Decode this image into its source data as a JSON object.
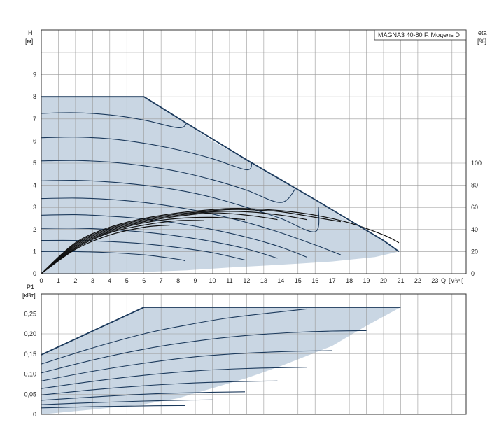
{
  "chart_data": [
    {
      "type": "line",
      "id": "head",
      "title": "MAGNA3 40-80 F. Модель D",
      "ylabel": "H",
      "yunit": "[м]",
      "xlabel": "Q",
      "xunit": "[м³/ч]",
      "y2label": "eta",
      "y2unit": "[%]",
      "xlim": [
        0,
        25
      ],
      "ylim": [
        0,
        11
      ],
      "y2lim": [
        0,
        220
      ],
      "xticks": [
        "0",
        "1",
        "2",
        "3",
        "4",
        "5",
        "6",
        "7",
        "8",
        "9",
        "10",
        "11",
        "12",
        "13",
        "14",
        "15",
        "16",
        "17",
        "18",
        "19",
        "20",
        "21",
        "22",
        "23"
      ],
      "yticks": [
        "0",
        "1",
        "2",
        "3",
        "4",
        "5",
        "6",
        "7",
        "8",
        "9"
      ],
      "y2ticks": [
        "0",
        "20",
        "40",
        "60",
        "80",
        "100"
      ],
      "grid": true,
      "shaded_region": [
        [
          0,
          0
        ],
        [
          0,
          8
        ],
        [
          6,
          8
        ],
        [
          8.5,
          6.8
        ],
        [
          10,
          6.0
        ],
        [
          12,
          5.15
        ],
        [
          14,
          4.3
        ],
        [
          16,
          3.35
        ],
        [
          18,
          2.35
        ],
        [
          20,
          1.5
        ],
        [
          20.9,
          1.0
        ],
        [
          19.5,
          0.75
        ],
        [
          17,
          0.55
        ],
        [
          15,
          0.45
        ],
        [
          13,
          0.36
        ],
        [
          11,
          0.28
        ],
        [
          8.5,
          0.15
        ],
        [
          6,
          0.08
        ],
        [
          3,
          0.02
        ]
      ],
      "envelope": [
        [
          0,
          8
        ],
        [
          6,
          8
        ],
        [
          8.5,
          6.8
        ],
        [
          12,
          5.15
        ],
        [
          16,
          3.35
        ],
        [
          20,
          1.5
        ],
        [
          20.9,
          1.0
        ]
      ],
      "series": [
        {
          "values": [
            [
              0,
              7.25
            ],
            [
              2,
              7.28
            ],
            [
              4,
              7.18
            ],
            [
              6,
              6.95
            ],
            [
              8,
              6.6
            ],
            [
              8.5,
              6.8
            ]
          ]
        },
        {
          "values": [
            [
              0,
              6.15
            ],
            [
              2,
              6.18
            ],
            [
              4,
              6.1
            ],
            [
              6,
              5.9
            ],
            [
              8,
              5.6
            ],
            [
              10,
              5.2
            ],
            [
              12,
              4.7
            ],
            [
              12.3,
              5.05
            ]
          ]
        },
        {
          "values": [
            [
              0,
              5.1
            ],
            [
              2,
              5.12
            ],
            [
              4,
              5.05
            ],
            [
              6,
              4.88
            ],
            [
              8,
              4.62
            ],
            [
              10,
              4.25
            ],
            [
              12,
              3.78
            ],
            [
              14,
              3.22
            ],
            [
              14.9,
              3.9
            ]
          ]
        },
        {
          "values": [
            [
              0,
              4.2
            ],
            [
              2,
              4.22
            ],
            [
              4,
              4.15
            ],
            [
              6,
              4.0
            ],
            [
              8,
              3.78
            ],
            [
              10,
              3.45
            ],
            [
              12,
              3.0
            ],
            [
              14,
              2.5
            ],
            [
              16,
              1.9
            ],
            [
              16.2,
              3.0
            ]
          ]
        },
        {
          "values": [
            [
              0,
              3.4
            ],
            [
              2,
              3.42
            ],
            [
              4,
              3.36
            ],
            [
              6,
              3.22
            ],
            [
              8,
              3.0
            ],
            [
              10,
              2.7
            ],
            [
              12,
              2.32
            ],
            [
              14,
              1.85
            ],
            [
              16,
              1.3
            ],
            [
              17.5,
              0.85
            ]
          ]
        },
        {
          "values": [
            [
              0,
              2.65
            ],
            [
              2,
              2.67
            ],
            [
              4,
              2.6
            ],
            [
              6,
              2.48
            ],
            [
              8,
              2.28
            ],
            [
              10,
              2.0
            ],
            [
              12,
              1.65
            ],
            [
              14,
              1.2
            ],
            [
              15.5,
              0.75
            ]
          ]
        },
        {
          "values": [
            [
              0,
              2.05
            ],
            [
              2,
              2.06
            ],
            [
              4,
              2.0
            ],
            [
              6,
              1.88
            ],
            [
              8,
              1.7
            ],
            [
              10,
              1.45
            ],
            [
              12,
              1.12
            ],
            [
              13.8,
              0.7
            ]
          ]
        },
        {
          "values": [
            [
              0,
              1.5
            ],
            [
              2,
              1.5
            ],
            [
              4,
              1.45
            ],
            [
              6,
              1.35
            ],
            [
              8,
              1.18
            ],
            [
              10,
              0.95
            ],
            [
              11.9,
              0.62
            ]
          ]
        },
        {
          "values": [
            [
              0,
              1.0
            ],
            [
              2,
              1.0
            ],
            [
              4,
              0.95
            ],
            [
              6,
              0.85
            ],
            [
              8,
              0.65
            ],
            [
              8.4,
              0.58
            ]
          ]
        }
      ],
      "eta_series": [
        {
          "values": [
            [
              0,
              0
            ],
            [
              2,
              28
            ],
            [
              4,
              42
            ],
            [
              6,
              50
            ],
            [
              8,
              55
            ],
            [
              10,
              58
            ],
            [
              11,
              59
            ],
            [
              12,
              59
            ],
            [
              14,
              57
            ],
            [
              16,
              53
            ],
            [
              18,
              46
            ],
            [
              20,
              35
            ],
            [
              20.9,
              28
            ]
          ]
        },
        {
          "values": [
            [
              0,
              0
            ],
            [
              2,
              27
            ],
            [
              4,
              41
            ],
            [
              6,
              49
            ],
            [
              8,
              54
            ],
            [
              10,
              57
            ],
            [
              11,
              58
            ],
            [
              12,
              58
            ],
            [
              14,
              56
            ],
            [
              16,
              51
            ],
            [
              17.5,
              47
            ]
          ]
        },
        {
          "values": [
            [
              0,
              0
            ],
            [
              2,
              26
            ],
            [
              4,
              40
            ],
            [
              6,
              48
            ],
            [
              8,
              53
            ],
            [
              10,
              56
            ],
            [
              12,
              56
            ],
            [
              14,
              53
            ],
            [
              15.5,
              49
            ]
          ]
        },
        {
          "values": [
            [
              0,
              0
            ],
            [
              2,
              25
            ],
            [
              4,
              39
            ],
            [
              6,
              47
            ],
            [
              8,
              52
            ],
            [
              10,
              55
            ],
            [
              12,
              53
            ],
            [
              13.8,
              49
            ]
          ]
        },
        {
          "values": [
            [
              0,
              0
            ],
            [
              2,
              24
            ],
            [
              4,
              38
            ],
            [
              6,
              46
            ],
            [
              8,
              50
            ],
            [
              10,
              51
            ],
            [
              11.9,
              49
            ]
          ]
        },
        {
          "values": [
            [
              0,
              0
            ],
            [
              2,
              23
            ],
            [
              4,
              37
            ],
            [
              6,
              44
            ],
            [
              8,
              48
            ],
            [
              9.5,
              48
            ]
          ]
        },
        {
          "values": [
            [
              0,
              0
            ],
            [
              2,
              22
            ],
            [
              4,
              35
            ],
            [
              6,
              42
            ],
            [
              7.5,
              44
            ]
          ]
        }
      ]
    },
    {
      "type": "line",
      "id": "power",
      "ylabel": "P1",
      "yunit": "[кВт]",
      "xlim": [
        0,
        25
      ],
      "ylim": [
        0,
        0.3
      ],
      "yticks": [
        "0",
        "0,05",
        "0,10",
        "0,15",
        "0,20",
        "0,25"
      ],
      "ytick_values": [
        0,
        0.05,
        0.1,
        0.15,
        0.2,
        0.25
      ],
      "grid": true,
      "shaded_region": [
        [
          0,
          0
        ],
        [
          0,
          0.148
        ],
        [
          6,
          0.266
        ],
        [
          21,
          0.266
        ],
        [
          19,
          0.22
        ],
        [
          17,
          0.17
        ],
        [
          14,
          0.12
        ],
        [
          12,
          0.09
        ],
        [
          10,
          0.065
        ],
        [
          8,
          0.04
        ],
        [
          6,
          0.025
        ],
        [
          3,
          0.012
        ]
      ],
      "envelope": [
        [
          0,
          0.148
        ],
        [
          6,
          0.266
        ],
        [
          21,
          0.266
        ]
      ],
      "series": [
        {
          "values": [
            [
              0,
              0.125
            ],
            [
              3,
              0.165
            ],
            [
              6,
              0.2
            ],
            [
              8.5,
              0.222
            ],
            [
              11,
              0.24
            ],
            [
              14,
              0.255
            ],
            [
              15.5,
              0.262
            ]
          ]
        },
        {
          "values": [
            [
              0,
              0.103
            ],
            [
              3,
              0.135
            ],
            [
              6,
              0.162
            ],
            [
              9,
              0.182
            ],
            [
              12,
              0.196
            ],
            [
              15,
              0.204
            ],
            [
              17,
              0.207
            ],
            [
              19,
              0.208
            ]
          ]
        },
        {
          "values": [
            [
              0,
              0.083
            ],
            [
              3,
              0.107
            ],
            [
              6,
              0.127
            ],
            [
              9,
              0.143
            ],
            [
              12,
              0.152
            ],
            [
              15,
              0.157
            ],
            [
              17,
              0.158
            ]
          ]
        },
        {
          "values": [
            [
              0,
              0.064
            ],
            [
              3,
              0.082
            ],
            [
              6,
              0.097
            ],
            [
              9,
              0.108
            ],
            [
              12,
              0.114
            ],
            [
              14,
              0.116
            ],
            [
              15.5,
              0.117
            ]
          ]
        },
        {
          "values": [
            [
              0,
              0.048
            ],
            [
              3,
              0.061
            ],
            [
              6,
              0.071
            ],
            [
              9,
              0.078
            ],
            [
              12,
              0.082
            ],
            [
              13.8,
              0.083
            ]
          ]
        },
        {
          "values": [
            [
              0,
              0.035
            ],
            [
              3,
              0.043
            ],
            [
              6,
              0.05
            ],
            [
              9,
              0.054
            ],
            [
              11.9,
              0.056
            ]
          ]
        },
        {
          "values": [
            [
              0,
              0.024
            ],
            [
              3,
              0.029
            ],
            [
              6,
              0.033
            ],
            [
              8,
              0.035
            ],
            [
              10,
              0.036
            ]
          ]
        },
        {
          "values": [
            [
              0,
              0.016
            ],
            [
              3,
              0.019
            ],
            [
              6,
              0.021
            ],
            [
              8.4,
              0.022
            ]
          ]
        }
      ]
    }
  ]
}
